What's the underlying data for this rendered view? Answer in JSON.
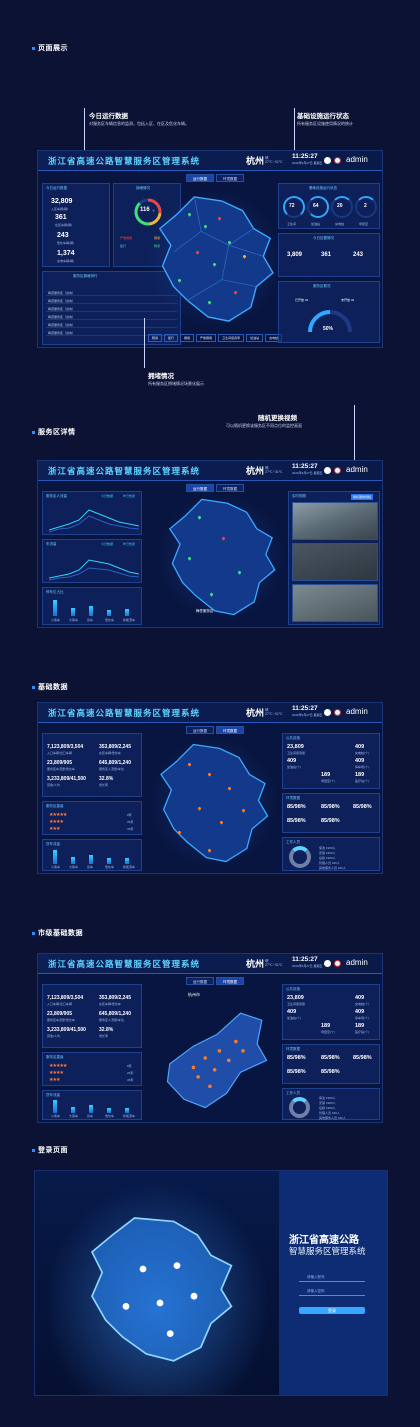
{
  "sections": {
    "page_display": "页面展示",
    "service_detail": "服务区详情",
    "basic_data": "基础数据",
    "city_basic_data": "市级基础数据",
    "login_page": "登录页面"
  },
  "header": {
    "title": "浙江省高速公路智慧服务区管理系统",
    "city": "杭州",
    "weather_line1": "晴",
    "weather_line2": "27℃~31℃",
    "time": "11:25:27",
    "date": "2022年5月27日 星期五",
    "user": "admin"
  },
  "tabs": [
    "运行数据",
    "环境数据"
  ],
  "annotations": {
    "daily_title": "今日运行数据",
    "daily_desc": "对服务区车辆信息的监测，包括入区、在区及危化车辆。",
    "infra_title": "基础设施运行状态",
    "infra_desc": "所有服务区设施使用情况的统计",
    "congestion_title": "拥堵情况",
    "congestion_desc": "所有服务区拥堵情况场景化展示",
    "video_title": "随机更换视频",
    "video_desc": "可以随机更换该服务区不同点位的监控画面"
  },
  "board1": {
    "daily_panel": "今日运行数据",
    "stats": [
      {
        "value": "32,809",
        "label": "入区车辆(辆)"
      },
      {
        "value": "361",
        "label": "在区车辆(辆)"
      },
      {
        "value": "243",
        "label": "危化车辆(辆)"
      },
      {
        "value": "1,374",
        "label": "充电车辆(辆)"
      }
    ],
    "congestion_panel": "拥堵情况",
    "ring_value": "116",
    "ring_unit": "个",
    "congestion_legend": [
      "严重拥堵",
      "拥堵",
      "缓行",
      "畅通"
    ],
    "rank_panel": "服务区拥堵排行",
    "rank_rows": [
      "梅苍服务区（双向）",
      "梅苍服务区（双向）",
      "梅苍服务区（双向）",
      "梅苍服务区（双向）",
      "梅苍服务区（双向）",
      "梅苍服务区（双向）"
    ],
    "infra_panel": "基础设施运行状态",
    "gauges": [
      {
        "value": "72",
        "label": "卫生间"
      },
      {
        "value": "64",
        "label": "加油站"
      },
      {
        "value": "20",
        "label": "充电桩"
      },
      {
        "value": "2",
        "label": "母婴室"
      }
    ],
    "today_panel": "今日处置情况",
    "today_stats": [
      "3,809",
      "361",
      "243"
    ],
    "service_panel": "服务区概况",
    "service_percent": "50%",
    "service_left": "已开放 42",
    "service_right": "未开放 42",
    "map_buttons": [
      "畅通",
      "缓行",
      "拥堵",
      "严重拥堵",
      "卫生间使用率",
      "加油站",
      "充电桩"
    ]
  },
  "board2": {
    "flow_panel": "服务区人流量",
    "car_panel": "车流量",
    "parking_panel": "停车位占比",
    "video_panel": "实时视频",
    "video_btn": "随机更换视频",
    "area_label": "梅苍服务区",
    "legend_today": "今日数据",
    "legend_prev": "昨日数据",
    "bar_labels": [
      "小客车",
      "大客车",
      "货车",
      "危化车",
      "新能源车"
    ]
  },
  "board3": {
    "nums": [
      {
        "value": "7,123,809/3,504",
        "label": "入口车辆/出口车辆"
      },
      {
        "value": "353,809/2,245",
        "label": "在区车辆/危化车"
      },
      {
        "value": "23,809/905",
        "label": "服务区车流量/危化车"
      },
      {
        "value": "645,809/1,240",
        "label": "服务区人流量/车位"
      },
      {
        "value": "3,233,809/41,500",
        "label": "营收/人均"
      },
      {
        "value": "32.8%",
        "label": "增长率"
      }
    ],
    "star_panel": "服务区星级",
    "star_counts": [
      "8家",
      "26家",
      "39家"
    ],
    "car_panel": "货车流量",
    "bar_labels": [
      "小客车",
      "大客车",
      "货车",
      "危化车",
      "新能源车"
    ],
    "public_panel": "公共设施",
    "public_nums": [
      {
        "value": "23,809",
        "label": "卫生间使用量"
      },
      {
        "value": "409",
        "label": "充电桩(个)"
      },
      {
        "value": "409",
        "label": "加油站(个)"
      },
      {
        "value": "409",
        "label": "停车场(个)"
      },
      {
        "value": "189",
        "label": "母婴室(个)"
      },
      {
        "value": "189",
        "label": "医疗站(个)"
      }
    ],
    "env_panel": "环境数据",
    "env_nums": [
      "85/98%",
      "85/98%",
      "85/98%",
      "85/98%",
      "85/98%"
    ],
    "staff_panel": "工作人员",
    "staff_legend": [
      "保洁 1980人",
      "安保 1980人",
      "后勤 1980人",
      "管理人员 180人",
      "其他服务人员 180人"
    ]
  },
  "board4": {
    "city_label": "杭州市"
  },
  "login": {
    "title1": "浙江省高速公路",
    "title2": "智慧服务区管理系统",
    "user_placeholder": "请输入账号",
    "pwd_placeholder": "请输入密码",
    "button": "登录"
  }
}
